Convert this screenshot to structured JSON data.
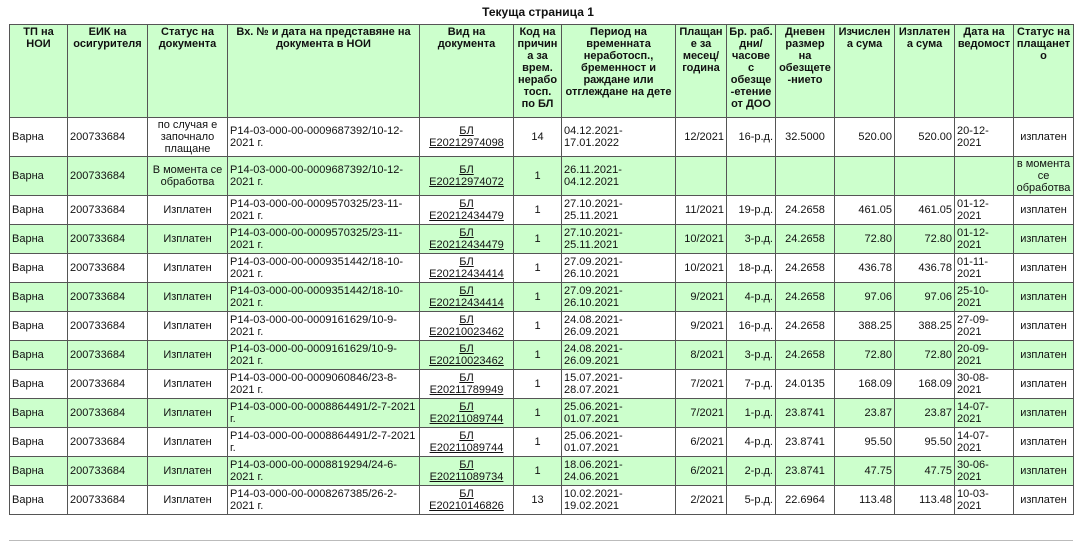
{
  "title": "Текуща страница 1",
  "table": {
    "headers": [
      "ТП на НОИ",
      "ЕИК на осигурителя",
      "Статус на документа",
      "Вх. № и дата на представяне на документа в НОИ",
      "Вид на документа",
      "Код на причина за врем. неработосп. по БЛ",
      "Период на временната неработосп., бременност и раждане или отглеждане на дете",
      "Плащане за месец/ година",
      "Бр. раб. дни/ часове с обезще-етение от ДОО",
      "Дневен размер на обезщете-нието",
      "Изчислена сума",
      "Изплатена сума",
      "Дата на ведомост",
      "Статус на плащането"
    ],
    "rows": [
      [
        "Варна",
        "200733684",
        "по случая е започнало плащане",
        "Р14-03-000-00-0009687392/10-12-2021 г.",
        "БЛ Е20212974098",
        "14",
        "04.12.2021-17.01.2022",
        "12/2021",
        "16-р.д.",
        "32.5000",
        "520.00",
        "520.00",
        "20-12-2021",
        "изплатен"
      ],
      [
        "Варна",
        "200733684",
        "В момента се обработва",
        "Р14-03-000-00-0009687392/10-12-2021 г.",
        "БЛ Е20212974072",
        "1",
        "26.11.2021-04.12.2021",
        null,
        null,
        null,
        null,
        null,
        null,
        "в момента се обработва"
      ],
      [
        "Варна",
        "200733684",
        "Изплатен",
        "Р14-03-000-00-0009570325/23-11-2021 г.",
        "БЛ Е20212434479",
        "1",
        "27.10.2021-25.11.2021",
        "11/2021",
        "19-р.д.",
        "24.2658",
        "461.05",
        "461.05",
        "01-12-2021",
        "изплатен"
      ],
      [
        "Варна",
        "200733684",
        "Изплатен",
        "Р14-03-000-00-0009570325/23-11-2021 г.",
        "БЛ Е20212434479",
        "1",
        "27.10.2021-25.11.2021",
        "10/2021",
        "3-р.д.",
        "24.2658",
        "72.80",
        "72.80",
        "01-12-2021",
        "изплатен"
      ],
      [
        "Варна",
        "200733684",
        "Изплатен",
        "Р14-03-000-00-0009351442/18-10-2021 г.",
        "БЛ Е20212434414",
        "1",
        "27.09.2021-26.10.2021",
        "10/2021",
        "18-р.д.",
        "24.2658",
        "436.78",
        "436.78",
        "01-11-2021",
        "изплатен"
      ],
      [
        "Варна",
        "200733684",
        "Изплатен",
        "Р14-03-000-00-0009351442/18-10-2021 г.",
        "БЛ Е20212434414",
        "1",
        "27.09.2021-26.10.2021",
        "9/2021",
        "4-р.д.",
        "24.2658",
        "97.06",
        "97.06",
        "25-10-2021",
        "изплатен"
      ],
      [
        "Варна",
        "200733684",
        "Изплатен",
        "Р14-03-000-00-0009161629/10-9-2021 г.",
        "БЛ Е20210023462",
        "1",
        "24.08.2021-26.09.2021",
        "9/2021",
        "16-р.д.",
        "24.2658",
        "388.25",
        "388.25",
        "27-09-2021",
        "изплатен"
      ],
      [
        "Варна",
        "200733684",
        "Изплатен",
        "Р14-03-000-00-0009161629/10-9-2021 г.",
        "БЛ Е20210023462",
        "1",
        "24.08.2021-26.09.2021",
        "8/2021",
        "3-р.д.",
        "24.2658",
        "72.80",
        "72.80",
        "20-09-2021",
        "изплатен"
      ],
      [
        "Варна",
        "200733684",
        "Изплатен",
        "Р14-03-000-00-0009060846/23-8-2021 г.",
        "БЛ Е20211789949",
        "1",
        "15.07.2021-28.07.2021",
        "7/2021",
        "7-р.д.",
        "24.0135",
        "168.09",
        "168.09",
        "30-08-2021",
        "изплатен"
      ],
      [
        "Варна",
        "200733684",
        "Изплатен",
        "Р14-03-000-00-0008864491/2-7-2021 г.",
        "БЛ Е20211089744",
        "1",
        "25.06.2021-01.07.2021",
        "7/2021",
        "1-р.д.",
        "23.8741",
        "23.87",
        "23.87",
        "14-07-2021",
        "изплатен"
      ],
      [
        "Варна",
        "200733684",
        "Изплатен",
        "Р14-03-000-00-0008864491/2-7-2021 г.",
        "БЛ Е20211089744",
        "1",
        "25.06.2021-01.07.2021",
        "6/2021",
        "4-р.д.",
        "23.8741",
        "95.50",
        "95.50",
        "14-07-2021",
        "изплатен"
      ],
      [
        "Варна",
        "200733684",
        "Изплатен",
        "Р14-03-000-00-0008819294/24-6-2021 г.",
        "БЛ Е20211089734",
        "1",
        "18.06.2021-24.06.2021",
        "6/2021",
        "2-р.д.",
        "23.8741",
        "47.75",
        "47.75",
        "30-06-2021",
        "изплатен"
      ],
      [
        "Варна",
        "200733684",
        "Изплатен",
        "Р14-03-000-00-0008267385/26-2-2021 г.",
        "БЛ Е20210146826",
        "13",
        "10.02.2021-19.02.2021",
        "2/2021",
        "5-р.д.",
        "22.6964",
        "113.48",
        "113.48",
        "10-03-2021",
        "изплатен"
      ]
    ]
  }
}
